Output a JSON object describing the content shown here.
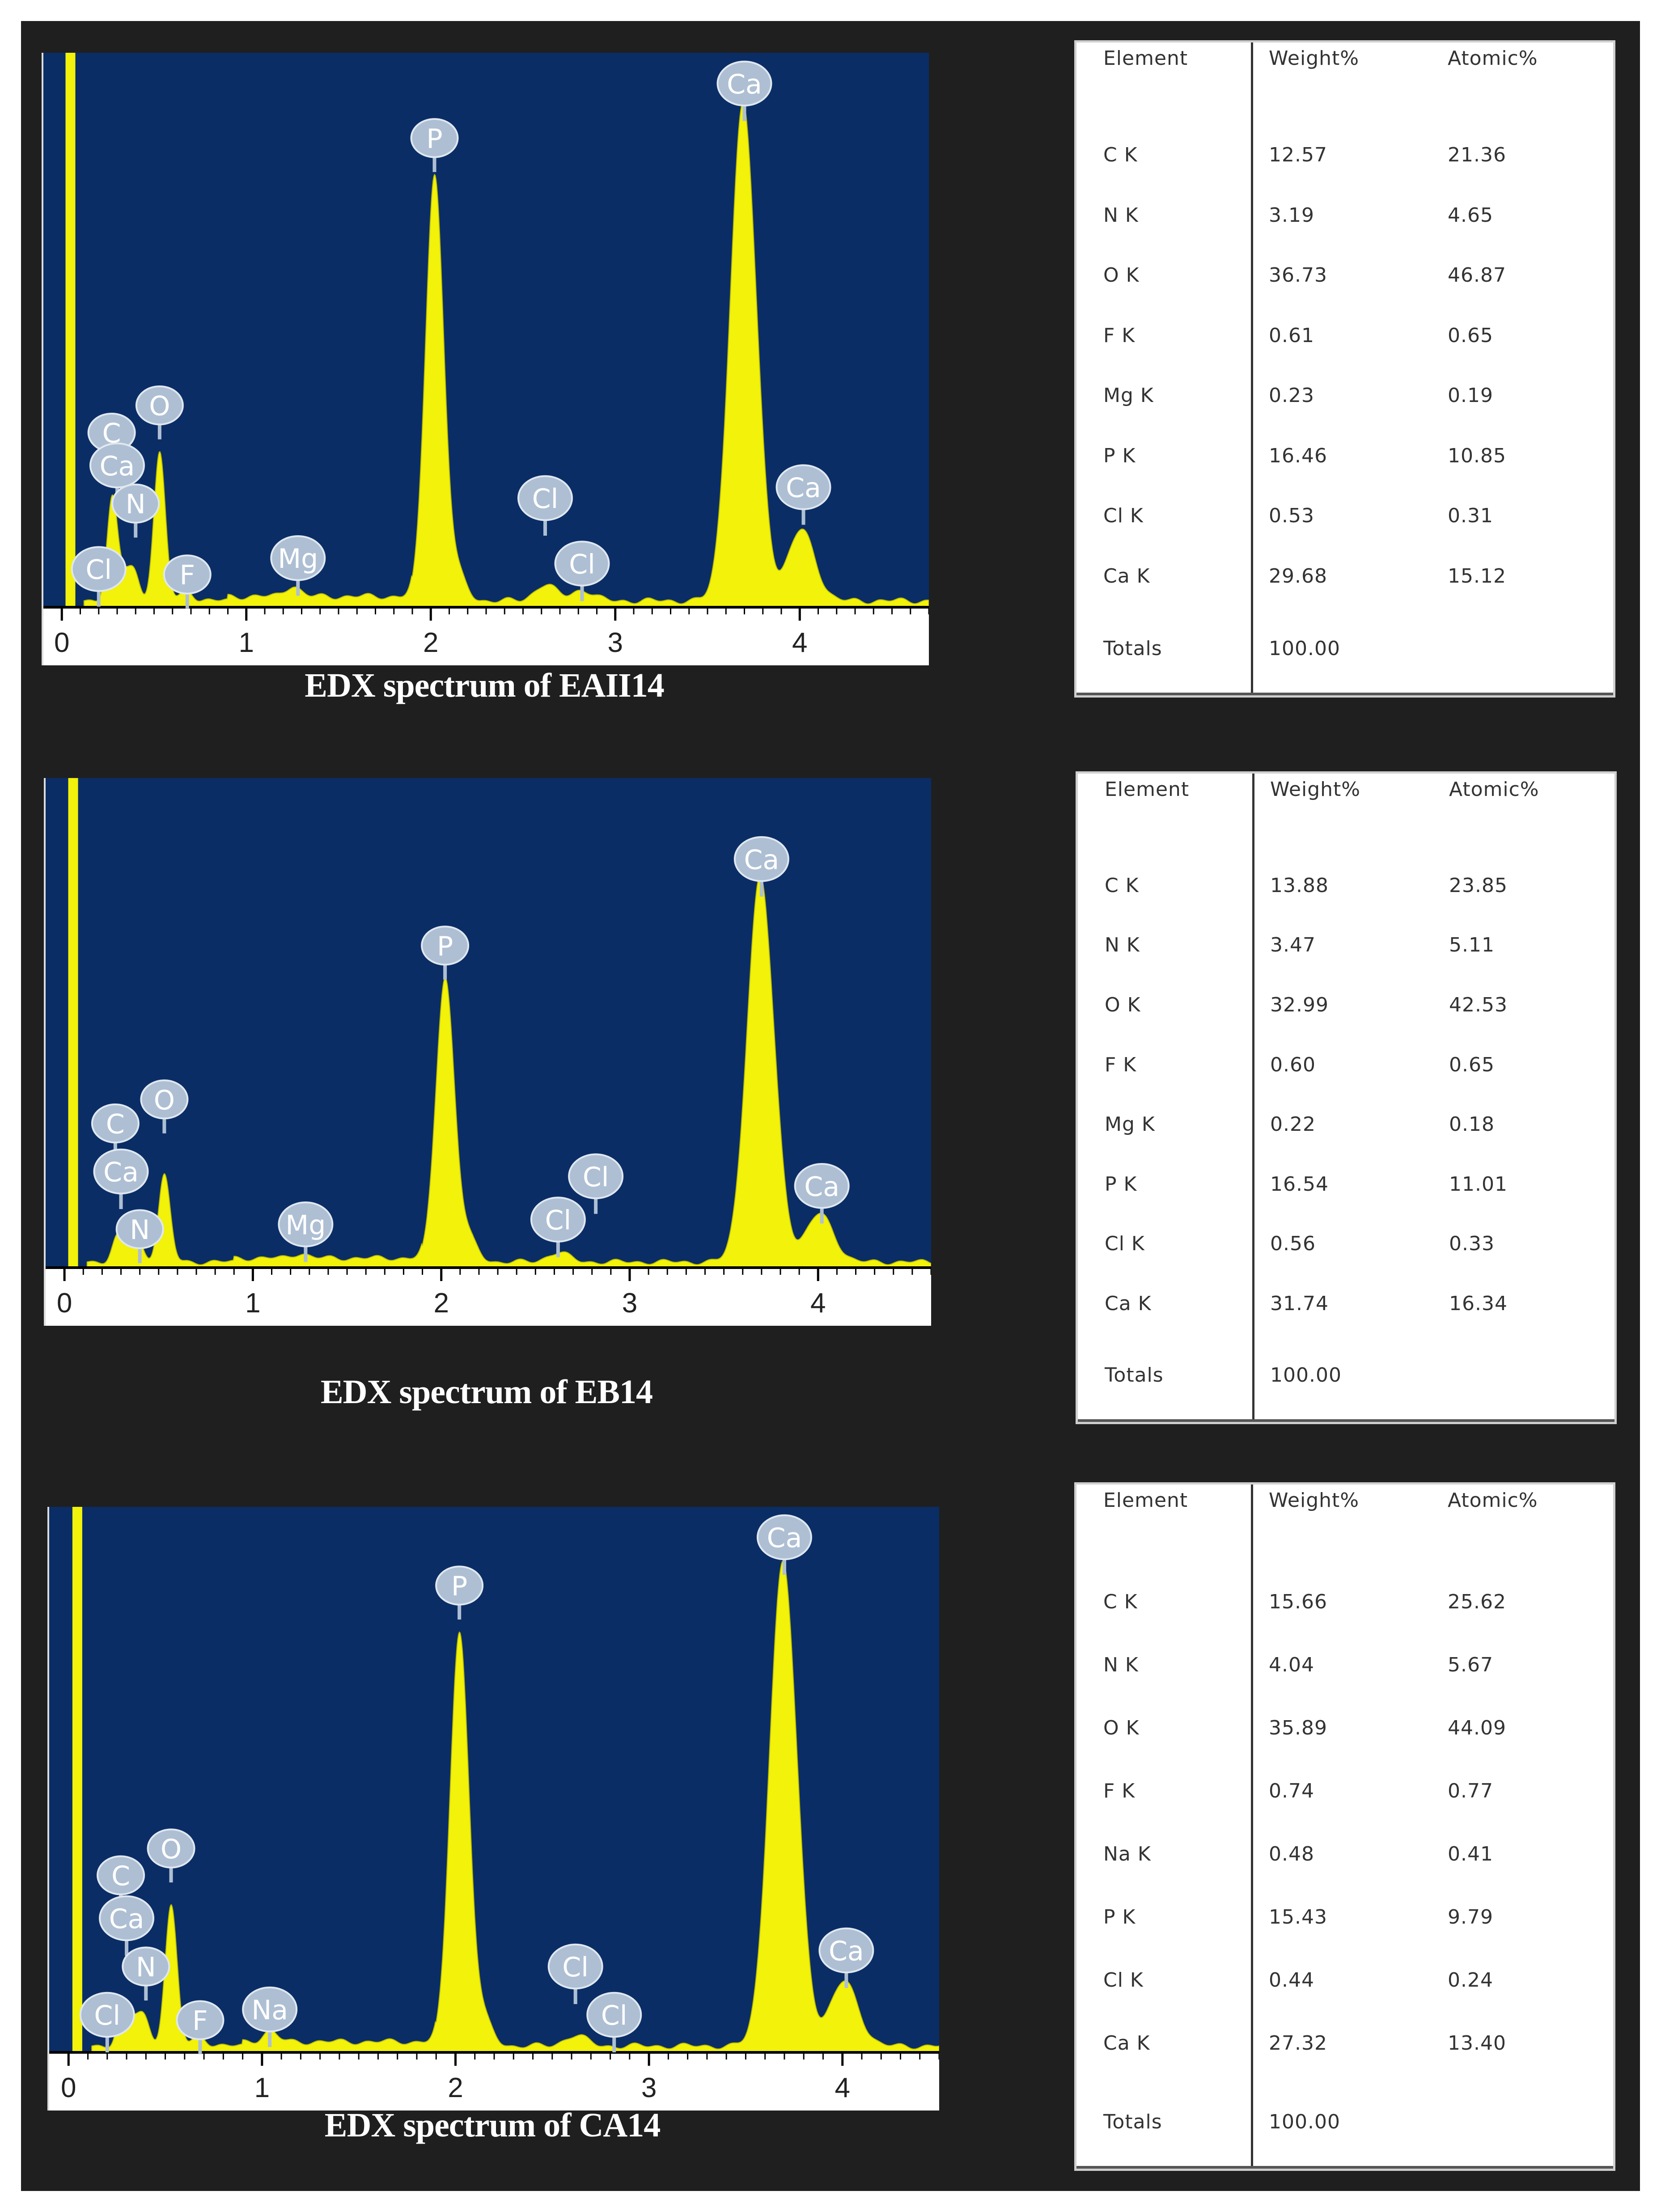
{
  "chart_data": [
    {
      "type": "line",
      "title": "EDX spectrum of EAII14",
      "x_ticks": [
        0,
        1,
        2,
        3,
        4
      ],
      "xlim": [
        -0.1,
        4.7
      ],
      "peaks": [
        {
          "label": "Cl",
          "x": 0.28,
          "h": 0.06
        },
        {
          "label": "C",
          "x": 0.27,
          "h": 0.13
        },
        {
          "label": "Ca",
          "x": 0.34,
          "h": 0.04
        },
        {
          "label": "N",
          "x": 0.39,
          "h": 0.05
        },
        {
          "label": "O",
          "x": 0.53,
          "h": 0.27
        },
        {
          "label": "F",
          "x": 0.68,
          "h": 0.02
        },
        {
          "label": "Mg",
          "x": 1.25,
          "h": 0.02
        },
        {
          "label": "P",
          "x": 2.02,
          "h": 0.78
        },
        {
          "label": "Cl",
          "x": 2.62,
          "h": 0.03
        },
        {
          "label": "Cl",
          "x": 2.82,
          "h": 0.02
        },
        {
          "label": "Ca",
          "x": 3.69,
          "h": 0.89
        },
        {
          "label": "Ca",
          "x": 4.01,
          "h": 0.13
        }
      ],
      "label_positions": [
        {
          "label": "Cl",
          "x": 0.2,
          "y": 0.07
        },
        {
          "label": "C",
          "x": 0.27,
          "y": 0.32
        },
        {
          "label": "O",
          "x": 0.53,
          "y": 0.37
        },
        {
          "label": "Ca",
          "x": 0.3,
          "y": 0.26
        },
        {
          "label": "N",
          "x": 0.4,
          "y": 0.19
        },
        {
          "label": "F",
          "x": 0.68,
          "y": 0.06
        },
        {
          "label": "Mg",
          "x": 1.28,
          "y": 0.09
        },
        {
          "label": "P",
          "x": 2.02,
          "y": 0.86
        },
        {
          "label": "Cl",
          "x": 2.62,
          "y": 0.2
        },
        {
          "label": "Cl",
          "x": 2.82,
          "y": 0.08
        },
        {
          "label": "Ca",
          "x": 3.7,
          "y": 0.96
        },
        {
          "label": "Ca",
          "x": 4.02,
          "y": 0.22
        }
      ]
    },
    {
      "type": "line",
      "title": "EDX spectrum of EB14",
      "x_ticks": [
        0,
        1,
        2,
        3,
        4
      ],
      "xlim": [
        -0.1,
        4.6
      ],
      "peaks": [
        {
          "label": "C",
          "x": 0.28,
          "h": 0.05
        },
        {
          "label": "Ca",
          "x": 0.34,
          "h": 0.04
        },
        {
          "label": "N",
          "x": 0.39,
          "h": 0.04
        },
        {
          "label": "O",
          "x": 0.53,
          "h": 0.18
        },
        {
          "label": "Mg",
          "x": 1.25,
          "h": 0.01
        },
        {
          "label": "P",
          "x": 2.02,
          "h": 0.59
        },
        {
          "label": "Cl",
          "x": 2.62,
          "h": 0.02
        },
        {
          "label": "Ca",
          "x": 3.69,
          "h": 0.78
        },
        {
          "label": "Ca",
          "x": 4.01,
          "h": 0.1
        }
      ],
      "label_positions": [
        {
          "label": "C",
          "x": 0.27,
          "y": 0.3
        },
        {
          "label": "O",
          "x": 0.53,
          "y": 0.35
        },
        {
          "label": "Ca",
          "x": 0.3,
          "y": 0.2
        },
        {
          "label": "N",
          "x": 0.4,
          "y": 0.08
        },
        {
          "label": "Mg",
          "x": 1.28,
          "y": 0.09
        },
        {
          "label": "P",
          "x": 2.02,
          "y": 0.67
        },
        {
          "label": "Cl",
          "x": 2.62,
          "y": 0.1
        },
        {
          "label": "Cl",
          "x": 2.82,
          "y": 0.19
        },
        {
          "label": "Ca",
          "x": 3.7,
          "y": 0.85
        },
        {
          "label": "Ca",
          "x": 4.02,
          "y": 0.17
        }
      ]
    },
    {
      "type": "line",
      "title": "EDX spectrum of CA14",
      "x_ticks": [
        0,
        1,
        2,
        3,
        4
      ],
      "xlim": [
        -0.1,
        4.5
      ],
      "peaks": [
        {
          "label": "C",
          "x": 0.28,
          "h": 0.07
        },
        {
          "label": "Ca",
          "x": 0.34,
          "h": 0.04
        },
        {
          "label": "N",
          "x": 0.39,
          "h": 0.05
        },
        {
          "label": "O",
          "x": 0.53,
          "h": 0.26
        },
        {
          "label": "F",
          "x": 0.68,
          "h": 0.02
        },
        {
          "label": "Na",
          "x": 1.04,
          "h": 0.02
        },
        {
          "label": "P",
          "x": 2.02,
          "h": 0.77
        },
        {
          "label": "Cl",
          "x": 2.62,
          "h": 0.02
        },
        {
          "label": "Ca",
          "x": 3.69,
          "h": 0.88
        },
        {
          "label": "Ca",
          "x": 4.01,
          "h": 0.12
        }
      ],
      "label_positions": [
        {
          "label": "Cl",
          "x": 0.2,
          "y": 0.07
        },
        {
          "label": "C",
          "x": 0.27,
          "y": 0.33
        },
        {
          "label": "O",
          "x": 0.53,
          "y": 0.38
        },
        {
          "label": "Ca",
          "x": 0.3,
          "y": 0.25
        },
        {
          "label": "N",
          "x": 0.4,
          "y": 0.16
        },
        {
          "label": "F",
          "x": 0.68,
          "y": 0.06
        },
        {
          "label": "Na",
          "x": 1.04,
          "y": 0.08
        },
        {
          "label": "P",
          "x": 2.02,
          "y": 0.87
        },
        {
          "label": "Cl",
          "x": 2.62,
          "y": 0.16
        },
        {
          "label": "Cl",
          "x": 2.82,
          "y": 0.07
        },
        {
          "label": "Ca",
          "x": 3.7,
          "y": 0.96
        },
        {
          "label": "Ca",
          "x": 4.02,
          "y": 0.19
        }
      ]
    }
  ],
  "colors": {
    "plot_bg": "#0a2d66",
    "spectrum": "#f2f20a",
    "spectrum_edge": "#b8b800",
    "label_fill": "#aebfd3",
    "label_text": "#ffffff"
  },
  "tables": [
    {
      "headers": [
        "Element",
        "Weight%",
        "Atomic%"
      ],
      "rows": [
        [
          "C K",
          "12.57",
          "21.36"
        ],
        [
          "N K",
          "3.19",
          "4.65"
        ],
        [
          "O K",
          "36.73",
          "46.87"
        ],
        [
          "F K",
          "0.61",
          "0.65"
        ],
        [
          "Mg K",
          "0.23",
          "0.19"
        ],
        [
          "P K",
          "16.46",
          "10.85"
        ],
        [
          "Cl K",
          "0.53",
          "0.31"
        ],
        [
          "Ca K",
          "29.68",
          "15.12"
        ]
      ],
      "totals_label": "Totals",
      "totals_value": "100.00"
    },
    {
      "headers": [
        "Element",
        "Weight%",
        "Atomic%"
      ],
      "rows": [
        [
          "C K",
          "13.88",
          "23.85"
        ],
        [
          "N K",
          "3.47",
          "5.11"
        ],
        [
          "O K",
          "32.99",
          "42.53"
        ],
        [
          "F K",
          "0.60",
          "0.65"
        ],
        [
          "Mg K",
          "0.22",
          "0.18"
        ],
        [
          "P K",
          "16.54",
          "11.01"
        ],
        [
          "Cl K",
          "0.56",
          "0.33"
        ],
        [
          "Ca K",
          "31.74",
          "16.34"
        ]
      ],
      "totals_label": "Totals",
      "totals_value": "100.00"
    },
    {
      "headers": [
        "Element",
        "Weight%",
        "Atomic%"
      ],
      "rows": [
        [
          "C K",
          "15.66",
          "25.62"
        ],
        [
          "N K",
          "4.04",
          "5.67"
        ],
        [
          "O K",
          "35.89",
          "44.09"
        ],
        [
          "F K",
          "0.74",
          "0.77"
        ],
        [
          "Na K",
          "0.48",
          "0.41"
        ],
        [
          "P K",
          "15.43",
          "9.79"
        ],
        [
          "Cl K",
          "0.44",
          "0.24"
        ],
        [
          "Ca K",
          "27.32",
          "13.40"
        ]
      ],
      "totals_label": "Totals",
      "totals_value": "100.00"
    }
  ]
}
